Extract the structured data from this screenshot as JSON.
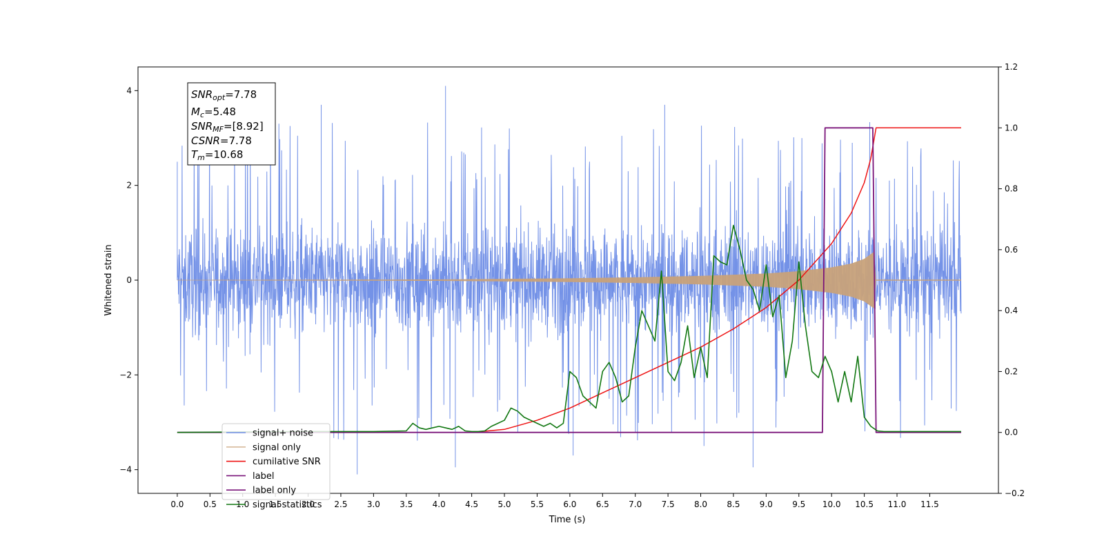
{
  "chart_data": {
    "type": "line",
    "title": "",
    "xlabel": "Time (s)",
    "ylabel": "Whitened strain",
    "y2label": "",
    "xlim": [
      -0.6,
      12.55
    ],
    "ylim": [
      -4.5,
      4.5
    ],
    "y2lim": [
      -0.2,
      1.2
    ],
    "x_ticks": [
      "0.0",
      "0.5",
      "1.0",
      "1.5",
      "2.0",
      "2.5",
      "3.0",
      "3.5",
      "4.0",
      "4.5",
      "5.0",
      "5.5",
      "6.0",
      "6.5",
      "7.0",
      "7.5",
      "8.0",
      "8.5",
      "9.0",
      "9.5",
      "10.0",
      "10.5",
      "11.0",
      "11.5"
    ],
    "y_ticks": [
      "−4",
      "−2",
      "0",
      "2",
      "4"
    ],
    "y2_ticks": [
      "−0.2",
      "0.0",
      "0.2",
      "0.4",
      "0.6",
      "0.8",
      "1.0",
      "1.2"
    ],
    "grid": false,
    "legend_position": "lower-left",
    "info_box": {
      "line1_sym": "SNR",
      "line1_sub": "opt",
      "line1_val": "=7.78",
      "line2_sym": "M",
      "line2_sub": "c",
      "line2_val": "=5.48",
      "line3_sym": "SNR",
      "line3_sub": "MF",
      "line3_val": "=[8.92]",
      "line4_sym": "CSNR",
      "line4_val": "=7.78",
      "line5_sym": "T",
      "line5_sub": "m",
      "line5_val": "=10.68"
    },
    "series": [
      {
        "name": "signal+ noise",
        "color": "#6d8ce6",
        "axis": "left",
        "description": "noisy whitened strain, roughly within -2 to 2 with spikes up to ±4",
        "x_range": [
          0.0,
          11.98
        ],
        "typical_amplitude": 2.0,
        "spikes": [
          [
            4.1,
            4.1
          ],
          [
            0.0,
            2.5
          ],
          [
            2.2,
            3.7
          ],
          [
            7.45,
            3.7
          ],
          [
            2.75,
            -4.1
          ],
          [
            4.25,
            -3.95
          ],
          [
            8.8,
            -3.95
          ],
          [
            6.05,
            -3.7
          ],
          [
            8.05,
            -3.5
          ]
        ]
      },
      {
        "name": "signal only",
        "color": "#c8a27a",
        "axis": "left",
        "description": "chirp signal growing from ~0 amplitude to ~0.6 at merger",
        "x_range": [
          0.0,
          11.98
        ],
        "merger_time": 10.68,
        "envelope": [
          [
            0.0,
            0.005
          ],
          [
            4.0,
            0.015
          ],
          [
            6.0,
            0.04
          ],
          [
            7.0,
            0.06
          ],
          [
            8.0,
            0.09
          ],
          [
            9.0,
            0.14
          ],
          [
            9.5,
            0.19
          ],
          [
            10.0,
            0.27
          ],
          [
            10.3,
            0.35
          ],
          [
            10.5,
            0.45
          ],
          [
            10.65,
            0.6
          ],
          [
            10.68,
            0.0
          ],
          [
            11.98,
            0.0
          ]
        ]
      },
      {
        "name": "cumilative SNR",
        "color": "#ee1111",
        "axis": "right",
        "x": [
          0.0,
          4.5,
          5.0,
          5.5,
          6.0,
          6.5,
          7.0,
          7.5,
          8.0,
          8.5,
          9.0,
          9.5,
          10.0,
          10.3,
          10.5,
          10.6,
          10.68,
          11.98
        ],
        "values": [
          0.0,
          0.0,
          0.01,
          0.04,
          0.08,
          0.13,
          0.18,
          0.23,
          0.28,
          0.34,
          0.41,
          0.5,
          0.62,
          0.72,
          0.82,
          0.9,
          1.0,
          1.0
        ]
      },
      {
        "name": "label",
        "color": "#7a147a",
        "axis": "right",
        "x": [
          0.0,
          9.86,
          9.9,
          10.63,
          10.68,
          11.98
        ],
        "values": [
          0.0,
          0.0,
          1.0,
          1.0,
          0.0,
          0.0
        ]
      },
      {
        "name": "label only",
        "color": "#7a147a",
        "axis": "right",
        "x": [],
        "values": []
      },
      {
        "name": "signal statistics",
        "color": "#117711",
        "axis": "right",
        "x": [
          0.0,
          2.0,
          3.0,
          3.5,
          3.6,
          3.7,
          3.8,
          3.9,
          4.0,
          4.1,
          4.2,
          4.3,
          4.4,
          4.5,
          4.6,
          4.7,
          4.8,
          4.9,
          5.0,
          5.1,
          5.2,
          5.3,
          5.4,
          5.5,
          5.6,
          5.7,
          5.8,
          5.9,
          6.0,
          6.1,
          6.2,
          6.3,
          6.4,
          6.5,
          6.6,
          6.7,
          6.8,
          6.9,
          7.0,
          7.1,
          7.2,
          7.3,
          7.4,
          7.5,
          7.6,
          7.7,
          7.8,
          7.9,
          8.0,
          8.1,
          8.2,
          8.3,
          8.4,
          8.5,
          8.6,
          8.7,
          8.8,
          8.9,
          9.0,
          9.1,
          9.2,
          9.3,
          9.4,
          9.5,
          9.6,
          9.7,
          9.8,
          9.9,
          10.0,
          10.1,
          10.2,
          10.3,
          10.4,
          10.5,
          10.6,
          10.7,
          10.8,
          11.0,
          11.5,
          11.98
        ],
        "values": [
          0.0,
          0.003,
          0.003,
          0.005,
          0.03,
          0.015,
          0.01,
          0.015,
          0.02,
          0.015,
          0.01,
          0.02,
          0.005,
          0.003,
          0.003,
          0.005,
          0.02,
          0.03,
          0.04,
          0.08,
          0.07,
          0.05,
          0.04,
          0.03,
          0.02,
          0.03,
          0.015,
          0.03,
          0.2,
          0.18,
          0.12,
          0.1,
          0.08,
          0.2,
          0.23,
          0.18,
          0.1,
          0.12,
          0.28,
          0.4,
          0.35,
          0.3,
          0.53,
          0.2,
          0.17,
          0.23,
          0.35,
          0.18,
          0.28,
          0.18,
          0.58,
          0.56,
          0.55,
          0.68,
          0.6,
          0.5,
          0.47,
          0.4,
          0.55,
          0.38,
          0.45,
          0.18,
          0.3,
          0.56,
          0.35,
          0.2,
          0.18,
          0.25,
          0.2,
          0.1,
          0.2,
          0.1,
          0.25,
          0.05,
          0.02,
          0.005,
          0.003,
          0.003,
          0.003,
          0.003
        ]
      }
    ]
  }
}
